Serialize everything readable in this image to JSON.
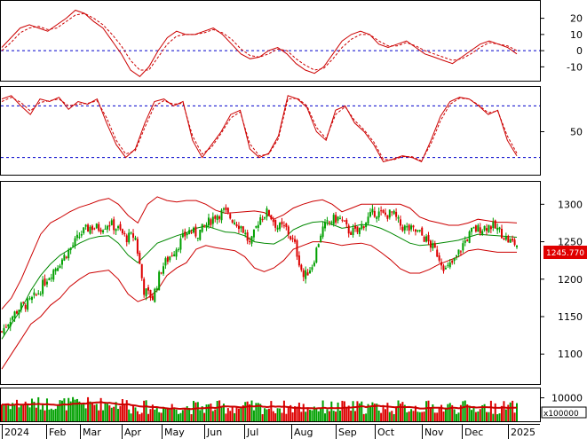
{
  "colors": {
    "up": "#00a000",
    "down": "#dd0000",
    "band": "#cc0000",
    "ma": "#008800",
    "indicator_main": "#cc0000",
    "indicator_signal": "#cc0000",
    "reference": "#0000cc",
    "price_tag_bg": "#e00000",
    "price_tag_text": "#ffffff",
    "volume_ma": "#cc0000"
  },
  "chart_data": {
    "type": "candlestick",
    "x_labels": [
      "2024",
      "Feb",
      "Mar",
      "Apr",
      "May",
      "Jun",
      "Jul",
      "Aug",
      "Sep",
      "Oct",
      "Nov",
      "Dec",
      "2025"
    ],
    "last_price_label": "1245.770",
    "volume_unit_label": "x100000",
    "panels": [
      {
        "name": "oscillator",
        "type": "line",
        "yticks": [
          20,
          10,
          0,
          -10
        ],
        "ylim": [
          -18,
          28
        ],
        "reference_lines": [
          0
        ],
        "series": [
          {
            "style": "solid",
            "values": [
              2,
              8,
              14,
              16,
              14,
              12,
              16,
              20,
              25,
              23,
              18,
              14,
              6,
              -2,
              -12,
              -16,
              -10,
              0,
              8,
              12,
              10,
              10,
              12,
              14,
              10,
              4,
              -2,
              -5,
              -4,
              0,
              2,
              -2,
              -8,
              -12,
              -14,
              -10,
              -2,
              6,
              10,
              12,
              10,
              4,
              2,
              4,
              6,
              2,
              -2,
              -4,
              -6,
              -8,
              -4,
              0,
              4,
              6,
              4,
              2,
              -2
            ]
          },
          {
            "style": "dashed",
            "values": [
              0,
              5,
              11,
              14,
              15,
              13,
              14,
              18,
              22,
              23,
              20,
              16,
              10,
              3,
              -6,
              -12,
              -12,
              -4,
              4,
              9,
              10,
              10,
              11,
              13,
              11,
              7,
              1,
              -3,
              -4,
              -2,
              1,
              0,
              -5,
              -9,
              -12,
              -11,
              -5,
              2,
              7,
              10,
              10,
              6,
              3,
              3,
              5,
              3,
              0,
              -2,
              -4,
              -6,
              -5,
              -2,
              2,
              5,
              4,
              3,
              0
            ]
          }
        ]
      },
      {
        "name": "stochastic",
        "type": "line",
        "yticks": [
          50
        ],
        "ylim": [
          0,
          100
        ],
        "reference_lines": [
          80,
          20
        ],
        "series": [
          {
            "style": "solid",
            "values": [
              88,
              92,
              80,
              70,
              88,
              85,
              90,
              76,
              85,
              82,
              88,
              60,
              35,
              20,
              30,
              60,
              85,
              88,
              80,
              85,
              40,
              20,
              35,
              50,
              70,
              75,
              30,
              20,
              25,
              45,
              92,
              88,
              78,
              50,
              40,
              75,
              80,
              60,
              50,
              35,
              15,
              18,
              22,
              20,
              15,
              40,
              68,
              85,
              90,
              88,
              80,
              70,
              75,
              40,
              22
            ]
          },
          {
            "style": "dashed",
            "values": [
              85,
              90,
              84,
              74,
              84,
              86,
              88,
              80,
              82,
              83,
              86,
              66,
              40,
              24,
              28,
              55,
              80,
              86,
              82,
              83,
              45,
              24,
              32,
              48,
              66,
              73,
              36,
              22,
              24,
              42,
              88,
              89,
              80,
              55,
              42,
              70,
              79,
              63,
              52,
              38,
              18,
              17,
              21,
              21,
              16,
              36,
              63,
              82,
              89,
              88,
              81,
              72,
              74,
              45,
              25
            ]
          }
        ]
      },
      {
        "name": "price",
        "type": "candlestick",
        "yticks": [
          1300,
          1250,
          1200,
          1150,
          1100
        ],
        "ylim": [
          1060,
          1330
        ],
        "bollinger_upper": [
          1160,
          1175,
          1200,
          1230,
          1260,
          1275,
          1282,
          1290,
          1296,
          1300,
          1305,
          1308,
          1300,
          1285,
          1275,
          1300,
          1310,
          1305,
          1303,
          1305,
          1305,
          1300,
          1292,
          1288,
          1289,
          1290,
          1291,
          1289,
          1280,
          1286,
          1295,
          1300,
          1304,
          1306,
          1300,
          1290,
          1295,
          1300,
          1300,
          1300,
          1300,
          1300,
          1295,
          1283,
          1278,
          1275,
          1272,
          1272,
          1275,
          1280,
          1278,
          1276,
          1276,
          1275
        ],
        "bollinger_lower": [
          1080,
          1100,
          1120,
          1140,
          1150,
          1165,
          1175,
          1190,
          1200,
          1208,
          1210,
          1212,
          1200,
          1180,
          1170,
          1175,
          1185,
          1205,
          1215,
          1222,
          1240,
          1245,
          1242,
          1240,
          1238,
          1230,
          1215,
          1210,
          1215,
          1225,
          1240,
          1245,
          1250,
          1250,
          1248,
          1245,
          1247,
          1248,
          1245,
          1236,
          1226,
          1214,
          1208,
          1208,
          1213,
          1220,
          1225,
          1230,
          1238,
          1240,
          1238,
          1236,
          1236,
          1236
        ],
        "moving_average": [
          1120,
          1140,
          1160,
          1185,
          1205,
          1220,
          1232,
          1240,
          1248,
          1254,
          1257,
          1258,
          1248,
          1232,
          1222,
          1235,
          1248,
          1253,
          1258,
          1262,
          1268,
          1271,
          1267,
          1263,
          1262,
          1258,
          1250,
          1248,
          1247,
          1254,
          1266,
          1272,
          1276,
          1277,
          1273,
          1268,
          1270,
          1273,
          1272,
          1268,
          1262,
          1255,
          1248,
          1245,
          1246,
          1248,
          1250,
          1252,
          1256,
          1260,
          1259,
          1258,
          1257,
          1256
        ],
        "closes": [
          1130,
          1148,
          1162,
          1168,
          1180,
          1200,
          1215,
          1230,
          1245,
          1262,
          1270,
          1268,
          1275,
          1268,
          1255,
          1258,
          1185,
          1175,
          1215,
          1232,
          1248,
          1265,
          1260,
          1272,
          1285,
          1290,
          1280,
          1270,
          1245,
          1282,
          1290,
          1270,
          1268,
          1245,
          1202,
          1220,
          1265,
          1278,
          1282,
          1265,
          1262,
          1278,
          1290,
          1285,
          1288,
          1270,
          1266,
          1262,
          1250,
          1235,
          1212,
          1225,
          1248,
          1265,
          1268,
          1272,
          1265,
          1252,
          1246
        ]
      },
      {
        "name": "volume",
        "type": "bar",
        "yticks": [
          10000
        ],
        "ylim": [
          0,
          14000
        ]
      }
    ]
  }
}
